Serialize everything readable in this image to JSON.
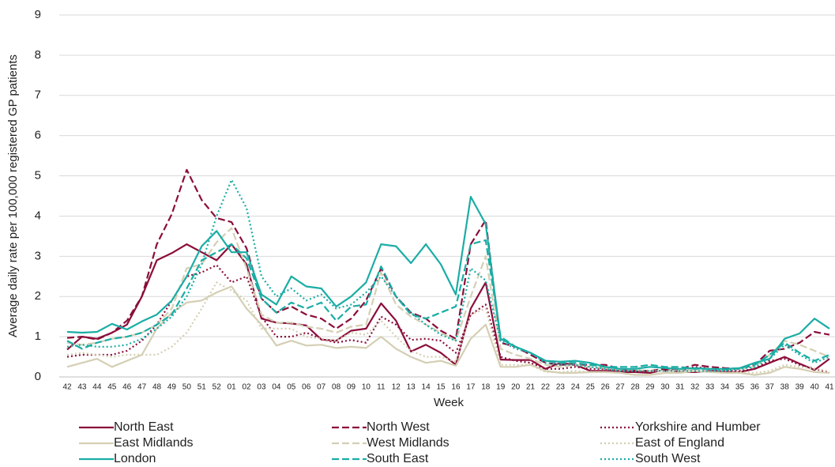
{
  "chart_data": {
    "type": "line",
    "y_label": "Average daily rate per 100,000 registered GP patients",
    "x_label": "Week",
    "categories": [
      "42",
      "43",
      "44",
      "45",
      "46",
      "47",
      "48",
      "49",
      "50",
      "51",
      "52",
      "01",
      "02",
      "03",
      "04",
      "05",
      "06",
      "07",
      "08",
      "09",
      "10",
      "11",
      "12",
      "13",
      "14",
      "15",
      "16",
      "17",
      "18",
      "19",
      "20",
      "21",
      "22",
      "23",
      "24",
      "25",
      "26",
      "27",
      "28",
      "29",
      "30",
      "31",
      "32",
      "33",
      "34",
      "35",
      "36",
      "37",
      "38",
      "39",
      "40",
      "41"
    ],
    "ylim": [
      0,
      9
    ],
    "yticks": [
      0,
      1,
      2,
      3,
      4,
      5,
      6,
      7,
      8,
      9
    ],
    "grid": true,
    "series": [
      {
        "name": "North East",
        "color": "#8b0e3a",
        "style": "solid",
        "values": [
          0.68,
          1.0,
          0.95,
          1.1,
          1.3,
          2.0,
          2.9,
          3.08,
          3.3,
          3.1,
          2.9,
          3.3,
          2.8,
          1.45,
          1.35,
          1.33,
          1.28,
          0.93,
          0.9,
          1.15,
          1.2,
          1.83,
          1.4,
          0.63,
          0.8,
          0.6,
          0.3,
          1.7,
          2.35,
          0.43,
          0.42,
          0.42,
          0.2,
          0.35,
          0.3,
          0.15,
          0.15,
          0.12,
          0.12,
          0.1,
          0.18,
          0.12,
          0.12,
          0.15,
          0.12,
          0.12,
          0.2,
          0.35,
          0.5,
          0.33,
          0.17,
          0.45
        ]
      },
      {
        "name": "North West",
        "color": "#8b0e3a",
        "style": "dashed",
        "values": [
          0.97,
          1.0,
          0.93,
          1.1,
          1.4,
          2.0,
          3.3,
          4.05,
          5.15,
          4.4,
          3.95,
          3.85,
          3.2,
          1.95,
          1.6,
          1.75,
          1.55,
          1.45,
          1.2,
          1.45,
          1.9,
          2.7,
          2.0,
          1.6,
          1.45,
          1.15,
          0.95,
          3.3,
          3.9,
          0.85,
          0.75,
          0.55,
          0.35,
          0.3,
          0.3,
          0.3,
          0.3,
          0.2,
          0.15,
          0.15,
          0.2,
          0.2,
          0.3,
          0.25,
          0.22,
          0.2,
          0.3,
          0.65,
          0.7,
          0.85,
          1.12,
          1.05
        ]
      },
      {
        "name": "Yorkshire and Humber",
        "color": "#8b0e3a",
        "style": "dotted",
        "values": [
          0.5,
          0.55,
          0.55,
          0.55,
          0.65,
          0.9,
          1.3,
          1.9,
          2.5,
          2.6,
          2.78,
          2.35,
          2.5,
          1.5,
          1.0,
          1.0,
          1.1,
          0.95,
          0.85,
          0.92,
          0.85,
          1.5,
          1.3,
          0.92,
          0.95,
          0.9,
          0.6,
          1.55,
          1.8,
          0.5,
          0.4,
          0.35,
          0.2,
          0.2,
          0.25,
          0.2,
          0.2,
          0.15,
          0.15,
          0.15,
          0.15,
          0.15,
          0.25,
          0.2,
          0.15,
          0.15,
          0.2,
          0.4,
          0.45,
          0.3,
          0.2,
          0.1
        ]
      },
      {
        "name": "East Midlands",
        "color": "#d4cfb4",
        "style": "solid",
        "values": [
          0.25,
          0.35,
          0.45,
          0.25,
          0.4,
          0.55,
          1.2,
          1.6,
          1.85,
          1.9,
          2.1,
          2.25,
          1.7,
          1.3,
          0.78,
          0.9,
          0.78,
          0.8,
          0.72,
          0.75,
          0.72,
          1.0,
          0.7,
          0.5,
          0.35,
          0.4,
          0.28,
          0.95,
          1.3,
          0.25,
          0.25,
          0.3,
          0.15,
          0.1,
          0.1,
          0.12,
          0.12,
          0.1,
          0.05,
          0.05,
          0.1,
          0.1,
          0.15,
          0.12,
          0.1,
          0.1,
          0.05,
          0.1,
          0.25,
          0.2,
          0.12,
          0.1
        ]
      },
      {
        "name": "West Midlands",
        "color": "#d4cfb4",
        "style": "dashed",
        "values": [
          0.85,
          0.8,
          0.85,
          0.95,
          1.0,
          1.1,
          1.3,
          1.7,
          2.7,
          2.8,
          3.35,
          3.7,
          2.7,
          1.55,
          1.35,
          1.35,
          1.25,
          1.2,
          1.1,
          1.25,
          1.3,
          2.6,
          1.8,
          1.5,
          1.3,
          1.1,
          0.9,
          2.0,
          3.0,
          0.7,
          0.55,
          0.45,
          0.3,
          0.25,
          0.3,
          0.25,
          0.22,
          0.2,
          0.18,
          0.15,
          0.15,
          0.15,
          0.2,
          0.2,
          0.18,
          0.2,
          0.25,
          0.55,
          0.9,
          0.8,
          0.65,
          0.5
        ]
      },
      {
        "name": "East of England",
        "color": "#d4cfb4",
        "style": "dotted",
        "values": [
          0.55,
          0.6,
          0.55,
          0.5,
          0.55,
          0.55,
          0.55,
          0.75,
          1.1,
          1.7,
          2.35,
          2.15,
          1.9,
          1.2,
          1.2,
          1.2,
          1.0,
          0.95,
          0.9,
          1.1,
          1.05,
          1.4,
          1.0,
          0.65,
          0.5,
          0.5,
          0.38,
          1.55,
          1.7,
          0.3,
          0.3,
          0.3,
          0.12,
          0.12,
          0.15,
          0.12,
          0.12,
          0.1,
          0.05,
          0.05,
          0.1,
          0.1,
          0.15,
          0.12,
          0.1,
          0.12,
          0.1,
          0.15,
          0.3,
          0.25,
          0.2,
          0.15
        ]
      },
      {
        "name": "London",
        "color": "#1aada5",
        "style": "solid",
        "values": [
          1.12,
          1.1,
          1.12,
          1.32,
          1.18,
          1.38,
          1.55,
          1.9,
          2.5,
          3.25,
          3.63,
          3.1,
          3.1,
          2.05,
          1.8,
          2.5,
          2.25,
          2.2,
          1.75,
          2.0,
          2.35,
          3.3,
          3.25,
          2.83,
          3.3,
          2.8,
          2.05,
          4.48,
          3.8,
          0.95,
          0.75,
          0.6,
          0.4,
          0.38,
          0.4,
          0.35,
          0.25,
          0.2,
          0.2,
          0.25,
          0.22,
          0.2,
          0.22,
          0.2,
          0.2,
          0.22,
          0.35,
          0.45,
          0.95,
          1.08,
          1.45,
          1.2
        ]
      },
      {
        "name": "South East",
        "color": "#1aada5",
        "style": "dashed",
        "values": [
          0.9,
          0.7,
          0.85,
          0.95,
          1.0,
          1.1,
          1.3,
          1.55,
          2.2,
          2.9,
          3.1,
          3.3,
          2.95,
          1.95,
          1.6,
          1.85,
          1.7,
          1.85,
          1.4,
          1.75,
          1.8,
          2.75,
          2.0,
          1.55,
          1.45,
          1.6,
          1.75,
          3.3,
          3.4,
          1.0,
          0.75,
          0.6,
          0.4,
          0.35,
          0.35,
          0.3,
          0.25,
          0.25,
          0.25,
          0.3,
          0.25,
          0.25,
          0.2,
          0.2,
          0.18,
          0.22,
          0.3,
          0.55,
          0.85,
          0.6,
          0.4,
          0.55
        ]
      },
      {
        "name": "South West",
        "color": "#1aada5",
        "style": "dotted",
        "values": [
          0.75,
          0.8,
          0.75,
          0.75,
          0.8,
          0.95,
          1.2,
          1.5,
          2.0,
          2.8,
          4.0,
          4.9,
          4.2,
          2.5,
          2.0,
          2.2,
          1.9,
          2.05,
          1.7,
          1.8,
          2.1,
          2.5,
          2.0,
          1.6,
          1.3,
          1.05,
          0.9,
          2.7,
          2.4,
          0.9,
          0.7,
          0.6,
          0.35,
          0.3,
          0.3,
          0.25,
          0.2,
          0.15,
          0.15,
          0.15,
          0.15,
          0.15,
          0.15,
          0.15,
          0.15,
          0.2,
          0.25,
          0.45,
          0.8,
          0.55,
          0.35,
          0.5
        ]
      }
    ]
  }
}
